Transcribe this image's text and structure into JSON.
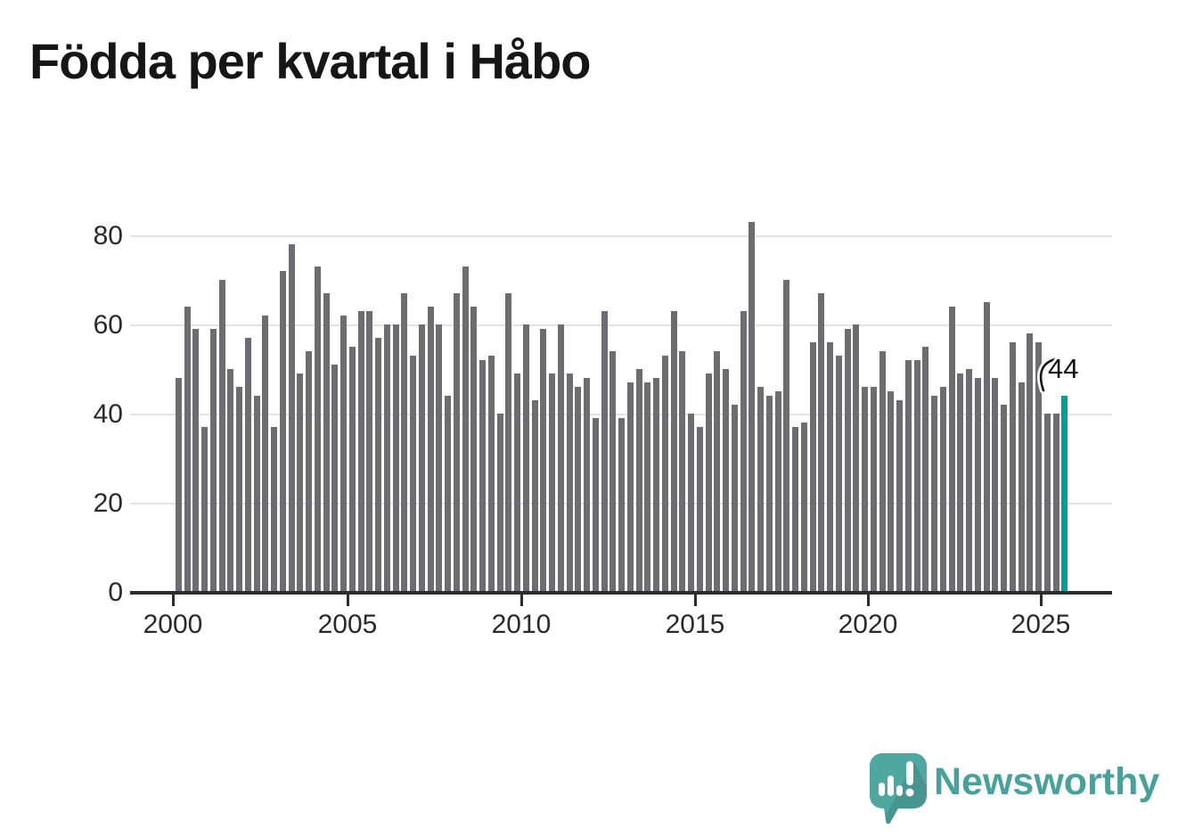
{
  "title": "Födda per kvartal i Håbo",
  "chart_data": {
    "type": "bar",
    "title": "Födda per kvartal i Håbo",
    "x_start_quarter": "2000 Q1",
    "x_end_quarter": "2025 Q3",
    "values": [
      48,
      64,
      59,
      37,
      59,
      70,
      50,
      46,
      57,
      44,
      62,
      37,
      72,
      78,
      49,
      54,
      73,
      67,
      51,
      62,
      55,
      63,
      63,
      57,
      60,
      60,
      67,
      53,
      60,
      64,
      60,
      44,
      67,
      73,
      64,
      52,
      53,
      40,
      67,
      49,
      60,
      43,
      59,
      49,
      60,
      49,
      46,
      48,
      39,
      63,
      54,
      39,
      47,
      50,
      47,
      48,
      53,
      63,
      54,
      40,
      37,
      49,
      54,
      50,
      42,
      63,
      83,
      46,
      44,
      45,
      70,
      37,
      38,
      56,
      67,
      56,
      53,
      59,
      60,
      46,
      46,
      54,
      45,
      43,
      52,
      52,
      55,
      44,
      46,
      64,
      49,
      50,
      48,
      65,
      48,
      42,
      56,
      47,
      58,
      56,
      40,
      40,
      44
    ],
    "highlight_last_value": 44,
    "highlight_label": "44",
    "x_ticks": [
      "2000",
      "2005",
      "2010",
      "2015",
      "2020",
      "2025"
    ],
    "y_ticks_desc": [
      "80",
      "60",
      "40",
      "20",
      "0"
    ],
    "ylim": [
      0,
      85
    ],
    "grid": true,
    "legend": "none",
    "bar_color": "#6c6c71",
    "highlight_color": "#00a099"
  },
  "branding": {
    "name": "Newsworthy",
    "text_color": "#47a29b",
    "icon_color": "#4fa8a0"
  }
}
